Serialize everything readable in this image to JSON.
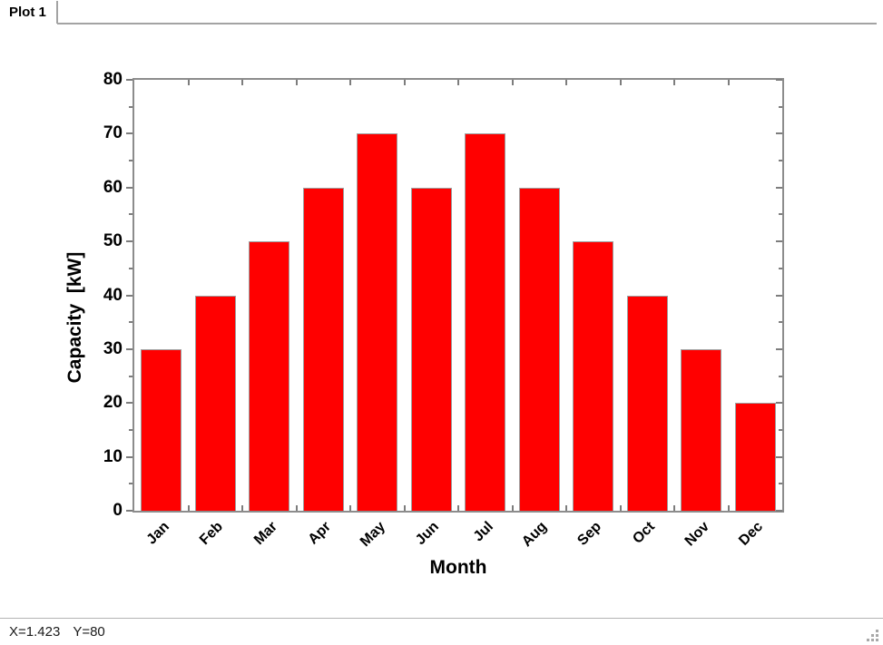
{
  "tab": {
    "label": "Plot 1"
  },
  "statusbar": {
    "x_label": "X=1.423",
    "y_label": "Y=80"
  },
  "colors": {
    "bar": "#ff0000",
    "bar_border": "#9e9e9e",
    "axis": "#8c8c8c",
    "tick": "#7d7d7d",
    "tab_line": "#a3a3a3",
    "status_line": "#b4b4b4",
    "text": "#000000"
  },
  "chart_data": {
    "type": "bar",
    "categories": [
      "Jan",
      "Feb",
      "Mar",
      "Apr",
      "May",
      "Jun",
      "Jul",
      "Aug",
      "Sep",
      "Oct",
      "Nov",
      "Dec"
    ],
    "values": [
      30,
      40,
      50,
      60,
      70,
      60,
      70,
      60,
      50,
      40,
      30,
      20
    ],
    "title": "",
    "xlabel": "Month",
    "ylabel": "Capacity  [kW]",
    "ylim": [
      0,
      80
    ],
    "ytick_major": 10,
    "ytick_minor": 5,
    "xtick_rotation_deg": 45,
    "grid": false,
    "legend_position": "none",
    "bar_color": "#ff0000"
  }
}
